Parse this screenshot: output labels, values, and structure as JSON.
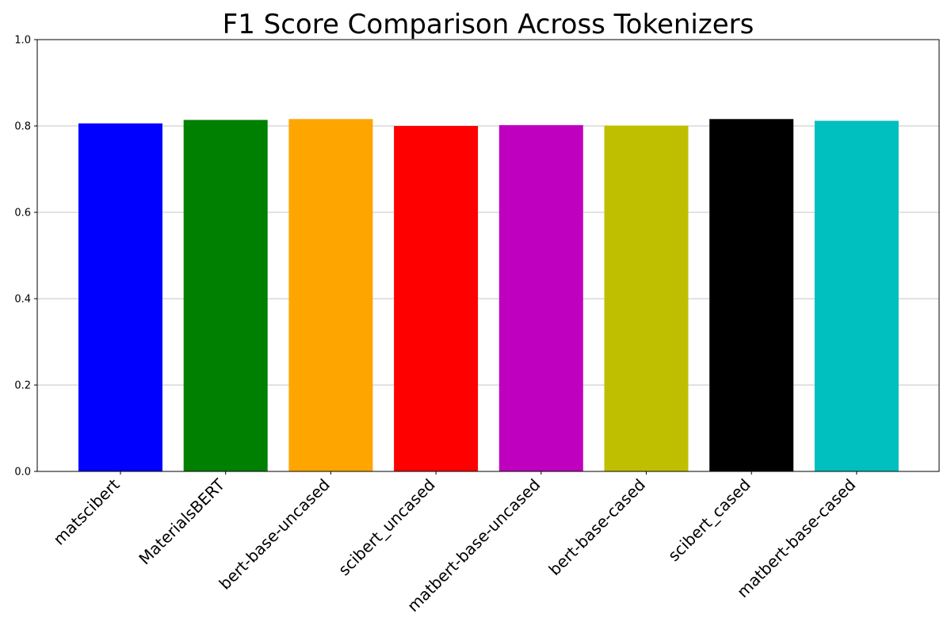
{
  "chart_data": {
    "type": "bar",
    "title": "F1 Score Comparison Across Tokenizers",
    "xlabel": "",
    "ylabel": "",
    "categories": [
      "matscibert",
      "MaterialsBERT",
      "bert-base-uncased",
      "scibert_uncased",
      "matbert-base-uncased",
      "bert-base-cased",
      "scibert_cased",
      "matbert-base-cased"
    ],
    "values": [
      0.806,
      0.814,
      0.816,
      0.8,
      0.802,
      0.801,
      0.816,
      0.812
    ],
    "colors": [
      "#0000ff",
      "#008000",
      "#ffa500",
      "#ff0000",
      "#bf00bf",
      "#bfbf00",
      "#000000",
      "#00bfbf"
    ],
    "ylim": [
      0,
      1.0
    ],
    "yticks": [
      "0.0",
      "0.2",
      "0.4",
      "0.6",
      "0.8",
      "1.0"
    ],
    "grid": "horizontal",
    "legend": "none"
  }
}
